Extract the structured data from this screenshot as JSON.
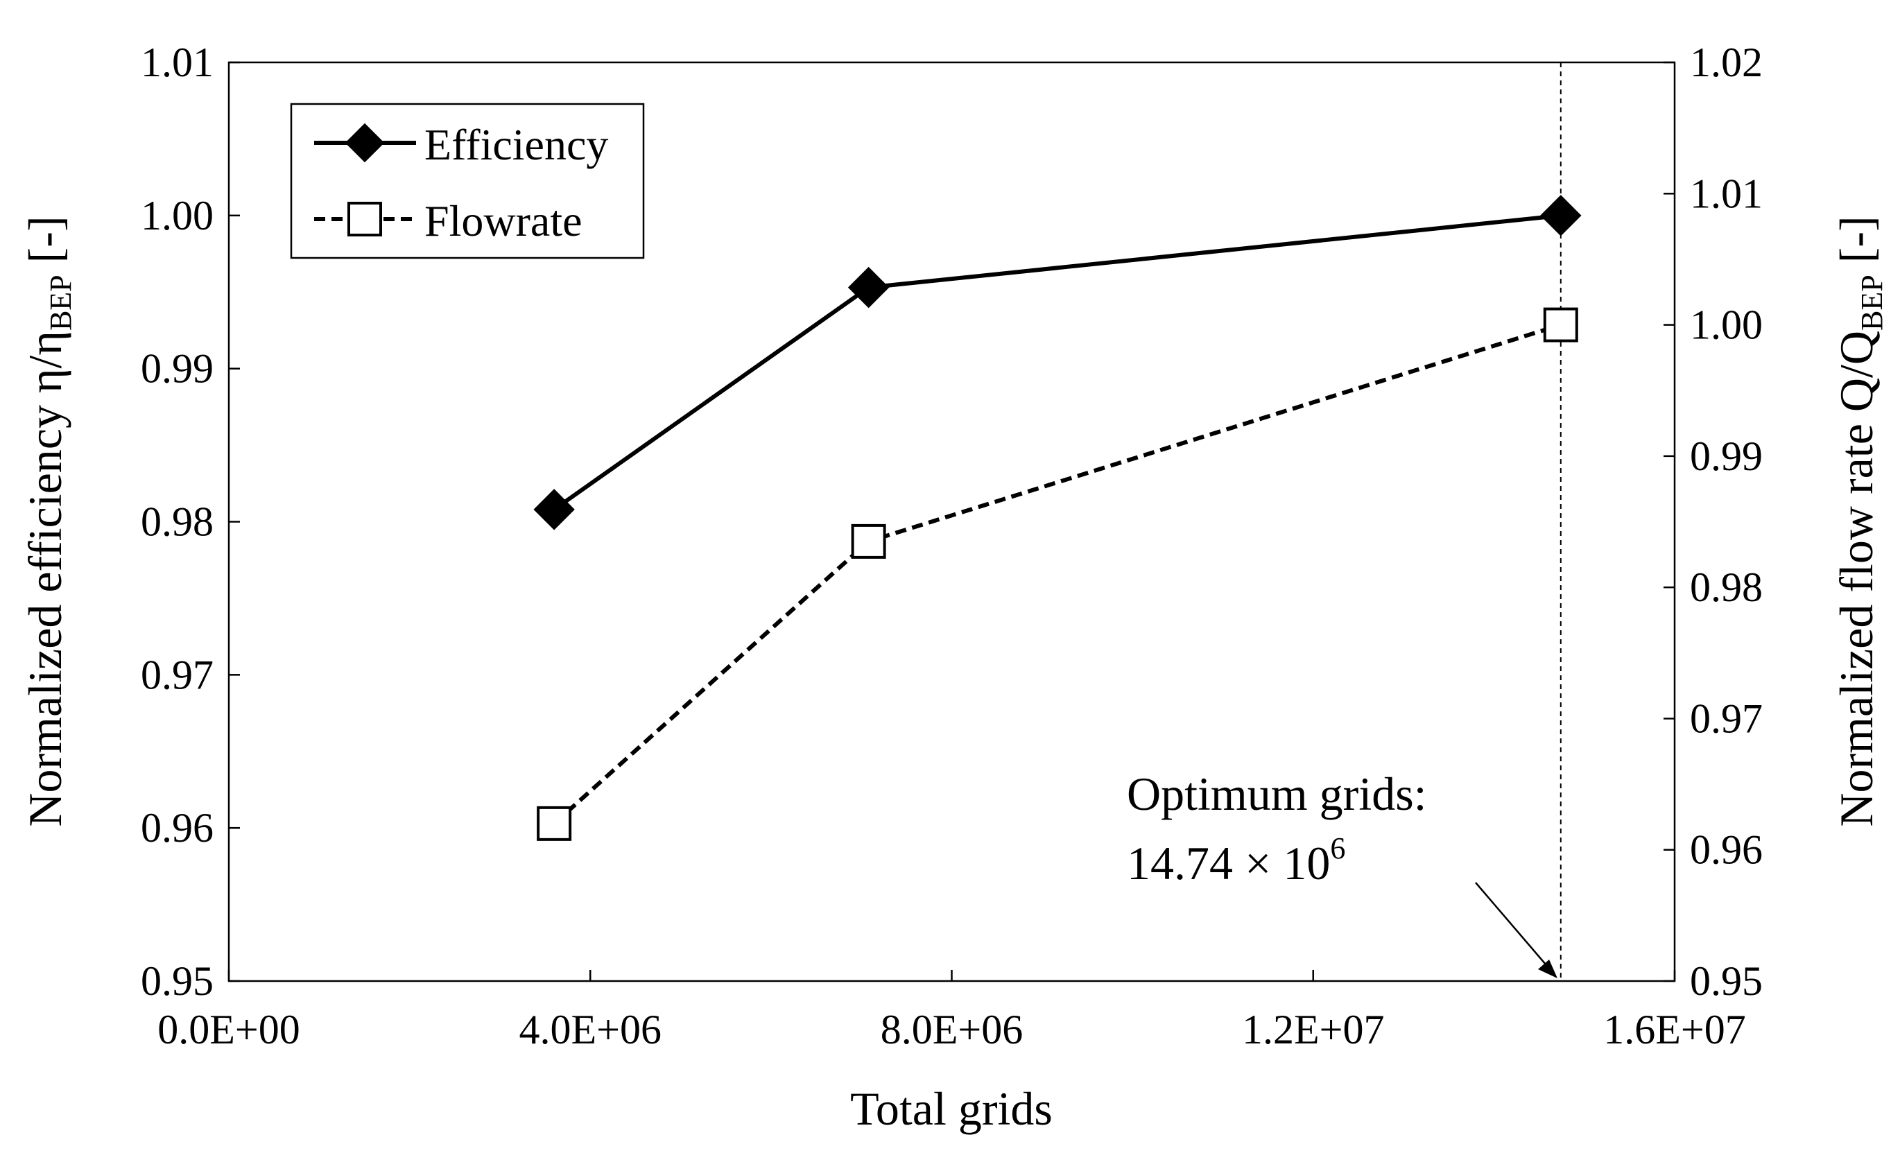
{
  "chart_data": {
    "type": "line",
    "x": [
      3600000,
      7080000,
      14740000
    ],
    "series": [
      {
        "name": "Efficiency",
        "axis": "left",
        "values": [
          0.9808,
          0.9953,
          1.0
        ]
      },
      {
        "name": "Flowrate",
        "axis": "right",
        "values": [
          0.962,
          0.9835,
          1.0
        ]
      }
    ],
    "xlabel": "Total grids",
    "xlim": [
      0,
      16000000
    ],
    "xticks": [
      0,
      4000000,
      8000000,
      12000000,
      16000000
    ],
    "xtick_labels": [
      "0.0E+00",
      "4.0E+06",
      "8.0E+06",
      "1.2E+07",
      "1.6E+07"
    ],
    "y_left": {
      "label_main": "Normalized efficiency η/η",
      "label_sub": "BEP",
      "label_suffix": " [-]",
      "lim": [
        0.95,
        1.01
      ],
      "ticks": [
        0.95,
        0.96,
        0.97,
        0.98,
        0.99,
        1.0,
        1.01
      ],
      "tick_labels": [
        "0.95",
        "0.96",
        "0.97",
        "0.98",
        "0.99",
        "1.00",
        "1.01"
      ]
    },
    "y_right": {
      "label_main": "Normalized flow rate Q/Q",
      "label_sub": "BEP",
      "label_suffix": " [-]",
      "lim": [
        0.95,
        1.02
      ],
      "ticks": [
        0.95,
        0.96,
        0.97,
        0.98,
        0.99,
        1.0,
        1.01,
        1.02
      ],
      "tick_labels": [
        "0.95",
        "0.96",
        "0.97",
        "0.98",
        "0.99",
        "1.00",
        "1.01",
        "1.02"
      ]
    },
    "reference_line_x": 14740000,
    "annotation": {
      "line1": "Optimum grids:",
      "line2_main": "14.74 × 10",
      "line2_sup": "6"
    },
    "legend": {
      "position": "top-left",
      "entries": [
        "Efficiency",
        "Flowrate"
      ]
    },
    "grid": false
  }
}
